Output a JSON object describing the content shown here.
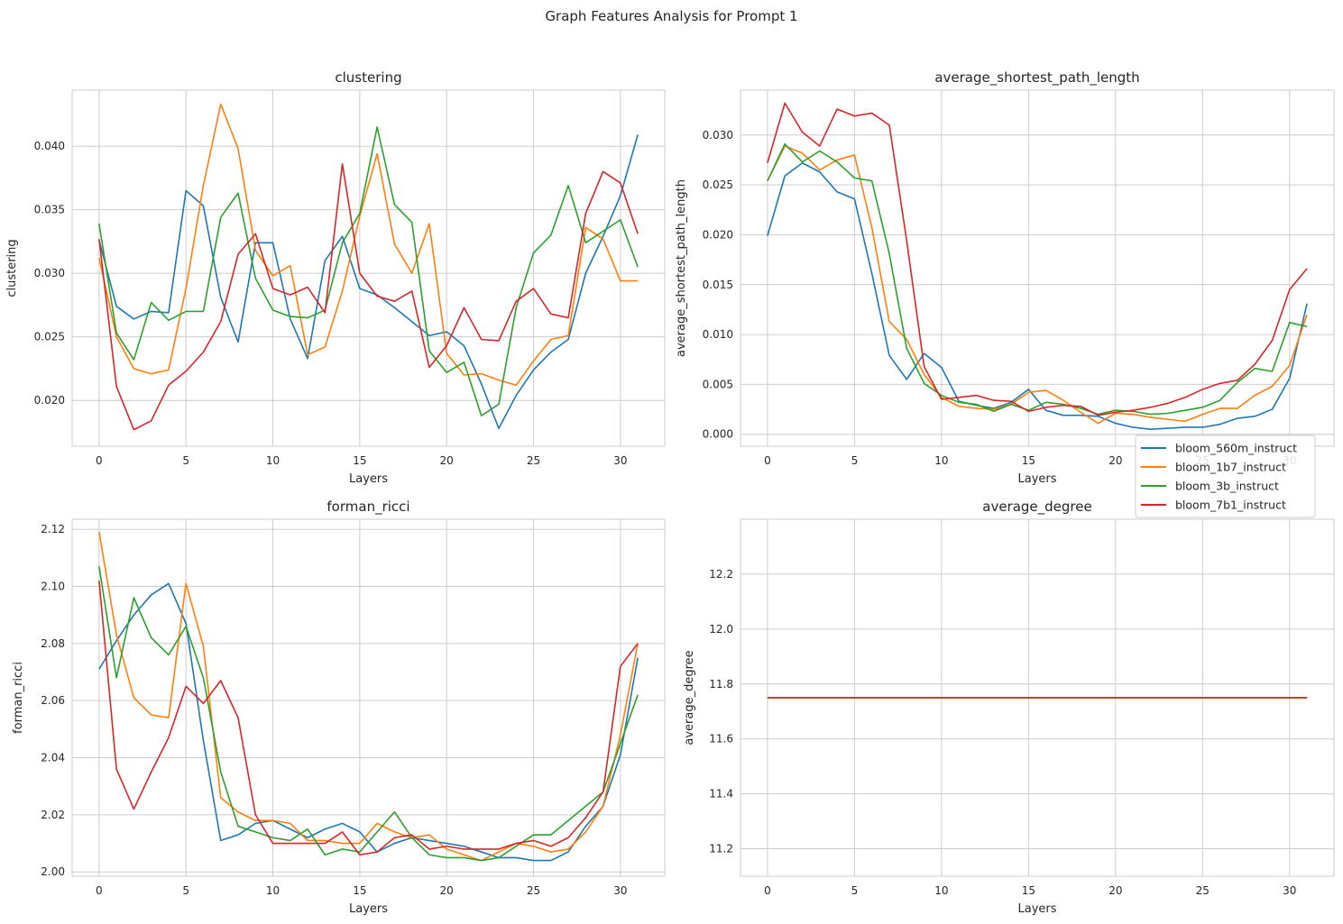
{
  "figure": {
    "title": "Graph Features Analysis for Prompt 1"
  },
  "colors": {
    "bloom_560m_instruct": "#1f77b4",
    "bloom_1b7_instruct": "#ff7f0e",
    "bloom_3b_instruct": "#2ca02c",
    "bloom_7b1_instruct": "#d62728"
  },
  "chart_data": [
    {
      "type": "line",
      "title": "clustering",
      "xlabel": "Layers",
      "ylabel": "clustering",
      "xlim": [
        -1.55,
        32.55
      ],
      "ylim": [
        0.0164,
        0.0444
      ],
      "xticks": [
        0,
        5,
        10,
        15,
        20,
        25,
        30
      ],
      "yticks": [
        0.02,
        0.025,
        0.03,
        0.035,
        0.04
      ],
      "ytick_decimals": 3,
      "grid": true,
      "x": [
        0,
        1,
        2,
        3,
        4,
        5,
        6,
        7,
        8,
        9,
        10,
        11,
        12,
        13,
        14,
        15,
        16,
        17,
        18,
        19,
        20,
        21,
        22,
        23,
        24,
        25,
        26,
        27,
        28,
        29,
        30,
        31
      ],
      "series": [
        {
          "name": "bloom_560m_instruct",
          "values": [
            0.0326,
            0.0274,
            0.0264,
            0.027,
            0.0269,
            0.0365,
            0.0353,
            0.0281,
            0.0246,
            0.0324,
            0.0324,
            0.0264,
            0.0233,
            0.031,
            0.0329,
            0.0288,
            0.0283,
            0.0273,
            0.0262,
            0.0251,
            0.0254,
            0.0243,
            0.0213,
            0.0178,
            0.0204,
            0.0224,
            0.0238,
            0.0248,
            0.03,
            0.0329,
            0.0361,
            0.0409
          ]
        },
        {
          "name": "bloom_1b7_instruct",
          "values": [
            0.0312,
            0.025,
            0.0225,
            0.0221,
            0.0224,
            0.0288,
            0.0369,
            0.0433,
            0.0398,
            0.0318,
            0.0298,
            0.0306,
            0.0236,
            0.0242,
            0.0286,
            0.0345,
            0.0394,
            0.0323,
            0.03,
            0.0339,
            0.0237,
            0.022,
            0.0221,
            0.0216,
            0.0212,
            0.0231,
            0.0248,
            0.0251,
            0.0336,
            0.0327,
            0.0294,
            0.0294
          ]
        },
        {
          "name": "bloom_3b_instruct",
          "values": [
            0.0339,
            0.0253,
            0.0232,
            0.0277,
            0.0263,
            0.027,
            0.027,
            0.0344,
            0.0363,
            0.0296,
            0.0271,
            0.0266,
            0.0265,
            0.0271,
            0.0324,
            0.0347,
            0.0415,
            0.0354,
            0.034,
            0.0239,
            0.0222,
            0.023,
            0.0188,
            0.0197,
            0.0273,
            0.0316,
            0.033,
            0.0369,
            0.0324,
            0.0333,
            0.0342,
            0.0305
          ]
        },
        {
          "name": "bloom_7b1_instruct",
          "values": [
            0.0327,
            0.0211,
            0.0177,
            0.0184,
            0.0212,
            0.0223,
            0.0238,
            0.0262,
            0.0315,
            0.0331,
            0.0288,
            0.0283,
            0.0289,
            0.0269,
            0.0386,
            0.03,
            0.0282,
            0.0278,
            0.0286,
            0.0226,
            0.0243,
            0.0273,
            0.0248,
            0.0247,
            0.0278,
            0.0288,
            0.0268,
            0.0265,
            0.0347,
            0.038,
            0.0371,
            0.0331
          ]
        }
      ]
    },
    {
      "type": "line",
      "title": "average_shortest_path_length",
      "xlabel": "Layers",
      "ylabel": "average_shortest_path_length",
      "xlim": [
        -1.55,
        32.55
      ],
      "ylim": [
        -0.0012,
        0.0345
      ],
      "xticks": [
        0,
        5,
        10,
        15,
        20,
        25,
        30
      ],
      "yticks": [
        0.0,
        0.005,
        0.01,
        0.015,
        0.02,
        0.025,
        0.03
      ],
      "ytick_decimals": 3,
      "grid": true,
      "legend": "lower-right",
      "x": [
        0,
        1,
        2,
        3,
        4,
        5,
        6,
        7,
        8,
        9,
        10,
        11,
        12,
        13,
        14,
        15,
        16,
        17,
        18,
        19,
        20,
        21,
        22,
        23,
        24,
        25,
        26,
        27,
        28,
        29,
        30,
        31
      ],
      "series": [
        {
          "name": "bloom_560m_instruct",
          "values": [
            0.0199,
            0.0259,
            0.0272,
            0.0263,
            0.0243,
            0.0236,
            0.0161,
            0.0079,
            0.0055,
            0.0081,
            0.0067,
            0.0033,
            0.0029,
            0.0026,
            0.0032,
            0.0045,
            0.0024,
            0.0019,
            0.0019,
            0.0018,
            0.0011,
            0.0007,
            0.0005,
            0.0006,
            0.0007,
            0.0007,
            0.001,
            0.0016,
            0.0018,
            0.0025,
            0.0056,
            0.0131
          ]
        },
        {
          "name": "bloom_1b7_instruct",
          "values": [
            0.0254,
            0.0289,
            0.0282,
            0.0265,
            0.0275,
            0.028,
            0.0207,
            0.0113,
            0.0095,
            0.006,
            0.0037,
            0.0028,
            0.0026,
            0.0025,
            0.003,
            0.0042,
            0.0044,
            0.0034,
            0.0022,
            0.0011,
            0.0021,
            0.002,
            0.0017,
            0.0015,
            0.0013,
            0.002,
            0.0026,
            0.0026,
            0.0039,
            0.0048,
            0.0069,
            0.012
          ]
        },
        {
          "name": "bloom_3b_instruct",
          "values": [
            0.0254,
            0.0291,
            0.0273,
            0.0284,
            0.0273,
            0.0257,
            0.0254,
            0.0181,
            0.0086,
            0.0051,
            0.0039,
            0.0032,
            0.003,
            0.0023,
            0.003,
            0.0024,
            0.0032,
            0.003,
            0.0026,
            0.002,
            0.0024,
            0.0023,
            0.002,
            0.0021,
            0.0024,
            0.0027,
            0.0034,
            0.0052,
            0.0066,
            0.0063,
            0.0112,
            0.0108
          ]
        },
        {
          "name": "bloom_7b1_instruct",
          "values": [
            0.0272,
            0.0332,
            0.0303,
            0.0289,
            0.0326,
            0.0319,
            0.0322,
            0.031,
            0.0194,
            0.0068,
            0.0035,
            0.0037,
            0.0039,
            0.0034,
            0.0033,
            0.0023,
            0.0027,
            0.0029,
            0.0028,
            0.0019,
            0.0022,
            0.0024,
            0.0027,
            0.0031,
            0.0037,
            0.0045,
            0.0051,
            0.0054,
            0.007,
            0.0094,
            0.0145,
            0.0166
          ]
        }
      ]
    },
    {
      "type": "line",
      "title": "forman_ricci",
      "xlabel": "Layers",
      "ylabel": "forman_ricci",
      "xlim": [
        -1.55,
        32.55
      ],
      "ylim": [
        1.9985,
        2.1235
      ],
      "xticks": [
        0,
        5,
        10,
        15,
        20,
        25,
        30
      ],
      "yticks": [
        2.0,
        2.02,
        2.04,
        2.06,
        2.08,
        2.1,
        2.12
      ],
      "ytick_decimals": 2,
      "grid": true,
      "x": [
        0,
        1,
        2,
        3,
        4,
        5,
        6,
        7,
        8,
        9,
        10,
        11,
        12,
        13,
        14,
        15,
        16,
        17,
        18,
        19,
        20,
        21,
        22,
        23,
        24,
        25,
        26,
        27,
        28,
        29,
        30,
        31
      ],
      "series": [
        {
          "name": "bloom_560m_instruct",
          "values": [
            2.071,
            2.081,
            2.09,
            2.097,
            2.101,
            2.087,
            2.046,
            2.011,
            2.013,
            2.017,
            2.018,
            2.015,
            2.012,
            2.015,
            2.017,
            2.014,
            2.007,
            2.01,
            2.012,
            2.011,
            2.01,
            2.009,
            2.007,
            2.005,
            2.005,
            2.004,
            2.004,
            2.007,
            2.016,
            2.023,
            2.041,
            2.075
          ]
        },
        {
          "name": "bloom_1b7_instruct",
          "values": [
            2.119,
            2.083,
            2.061,
            2.055,
            2.054,
            2.101,
            2.079,
            2.026,
            2.021,
            2.018,
            2.018,
            2.017,
            2.011,
            2.011,
            2.01,
            2.01,
            2.017,
            2.014,
            2.012,
            2.013,
            2.008,
            2.006,
            2.004,
            2.007,
            2.01,
            2.009,
            2.007,
            2.008,
            2.014,
            2.023,
            2.048,
            2.08
          ]
        },
        {
          "name": "bloom_3b_instruct",
          "values": [
            2.107,
            2.068,
            2.096,
            2.082,
            2.076,
            2.086,
            2.068,
            2.035,
            2.016,
            2.014,
            2.012,
            2.011,
            2.015,
            2.006,
            2.008,
            2.007,
            2.014,
            2.021,
            2.012,
            2.006,
            2.005,
            2.005,
            2.004,
            2.005,
            2.009,
            2.013,
            2.013,
            2.018,
            2.023,
            2.028,
            2.045,
            2.062
          ]
        },
        {
          "name": "bloom_7b1_instruct",
          "values": [
            2.102,
            2.036,
            2.022,
            2.035,
            2.047,
            2.065,
            2.059,
            2.067,
            2.054,
            2.02,
            2.01,
            2.01,
            2.01,
            2.01,
            2.014,
            2.006,
            2.007,
            2.012,
            2.013,
            2.008,
            2.009,
            2.008,
            2.008,
            2.008,
            2.01,
            2.011,
            2.009,
            2.012,
            2.019,
            2.028,
            2.072,
            2.08
          ]
        }
      ]
    },
    {
      "type": "line",
      "title": "average_degree",
      "xlabel": "Layers",
      "ylabel": "average_degree",
      "xlim": [
        -1.55,
        32.55
      ],
      "ylim": [
        11.1,
        12.4
      ],
      "xticks": [
        0,
        5,
        10,
        15,
        20,
        25,
        30
      ],
      "yticks": [
        11.2,
        11.4,
        11.6,
        11.8,
        12.0,
        12.2
      ],
      "ytick_decimals": 1,
      "grid": true,
      "x": [
        0,
        1,
        2,
        3,
        4,
        5,
        6,
        7,
        8,
        9,
        10,
        11,
        12,
        13,
        14,
        15,
        16,
        17,
        18,
        19,
        20,
        21,
        22,
        23,
        24,
        25,
        26,
        27,
        28,
        29,
        30,
        31
      ],
      "series": [
        {
          "name": "bloom_560m_instruct",
          "values": [
            11.75,
            11.75,
            11.75,
            11.75,
            11.75,
            11.75,
            11.75,
            11.75,
            11.75,
            11.75,
            11.75,
            11.75,
            11.75,
            11.75,
            11.75,
            11.75,
            11.75,
            11.75,
            11.75,
            11.75,
            11.75,
            11.75,
            11.75,
            11.75,
            11.75,
            11.75,
            11.75,
            11.75,
            11.75,
            11.75,
            11.75,
            11.75
          ]
        },
        {
          "name": "bloom_1b7_instruct",
          "values": [
            11.75,
            11.75,
            11.75,
            11.75,
            11.75,
            11.75,
            11.75,
            11.75,
            11.75,
            11.75,
            11.75,
            11.75,
            11.75,
            11.75,
            11.75,
            11.75,
            11.75,
            11.75,
            11.75,
            11.75,
            11.75,
            11.75,
            11.75,
            11.75,
            11.75,
            11.75,
            11.75,
            11.75,
            11.75,
            11.75,
            11.75,
            11.75
          ]
        },
        {
          "name": "bloom_3b_instruct",
          "values": [
            11.75,
            11.75,
            11.75,
            11.75,
            11.75,
            11.75,
            11.75,
            11.75,
            11.75,
            11.75,
            11.75,
            11.75,
            11.75,
            11.75,
            11.75,
            11.75,
            11.75,
            11.75,
            11.75,
            11.75,
            11.75,
            11.75,
            11.75,
            11.75,
            11.75,
            11.75,
            11.75,
            11.75,
            11.75,
            11.75,
            11.75,
            11.75
          ]
        },
        {
          "name": "bloom_7b1_instruct",
          "values": [
            11.75,
            11.75,
            11.75,
            11.75,
            11.75,
            11.75,
            11.75,
            11.75,
            11.75,
            11.75,
            11.75,
            11.75,
            11.75,
            11.75,
            11.75,
            11.75,
            11.75,
            11.75,
            11.75,
            11.75,
            11.75,
            11.75,
            11.75,
            11.75,
            11.75,
            11.75,
            11.75,
            11.75,
            11.75,
            11.75,
            11.75,
            11.75
          ]
        }
      ]
    }
  ],
  "legend": {
    "entries": [
      "bloom_560m_instruct",
      "bloom_1b7_instruct",
      "bloom_3b_instruct",
      "bloom_7b1_instruct"
    ]
  }
}
